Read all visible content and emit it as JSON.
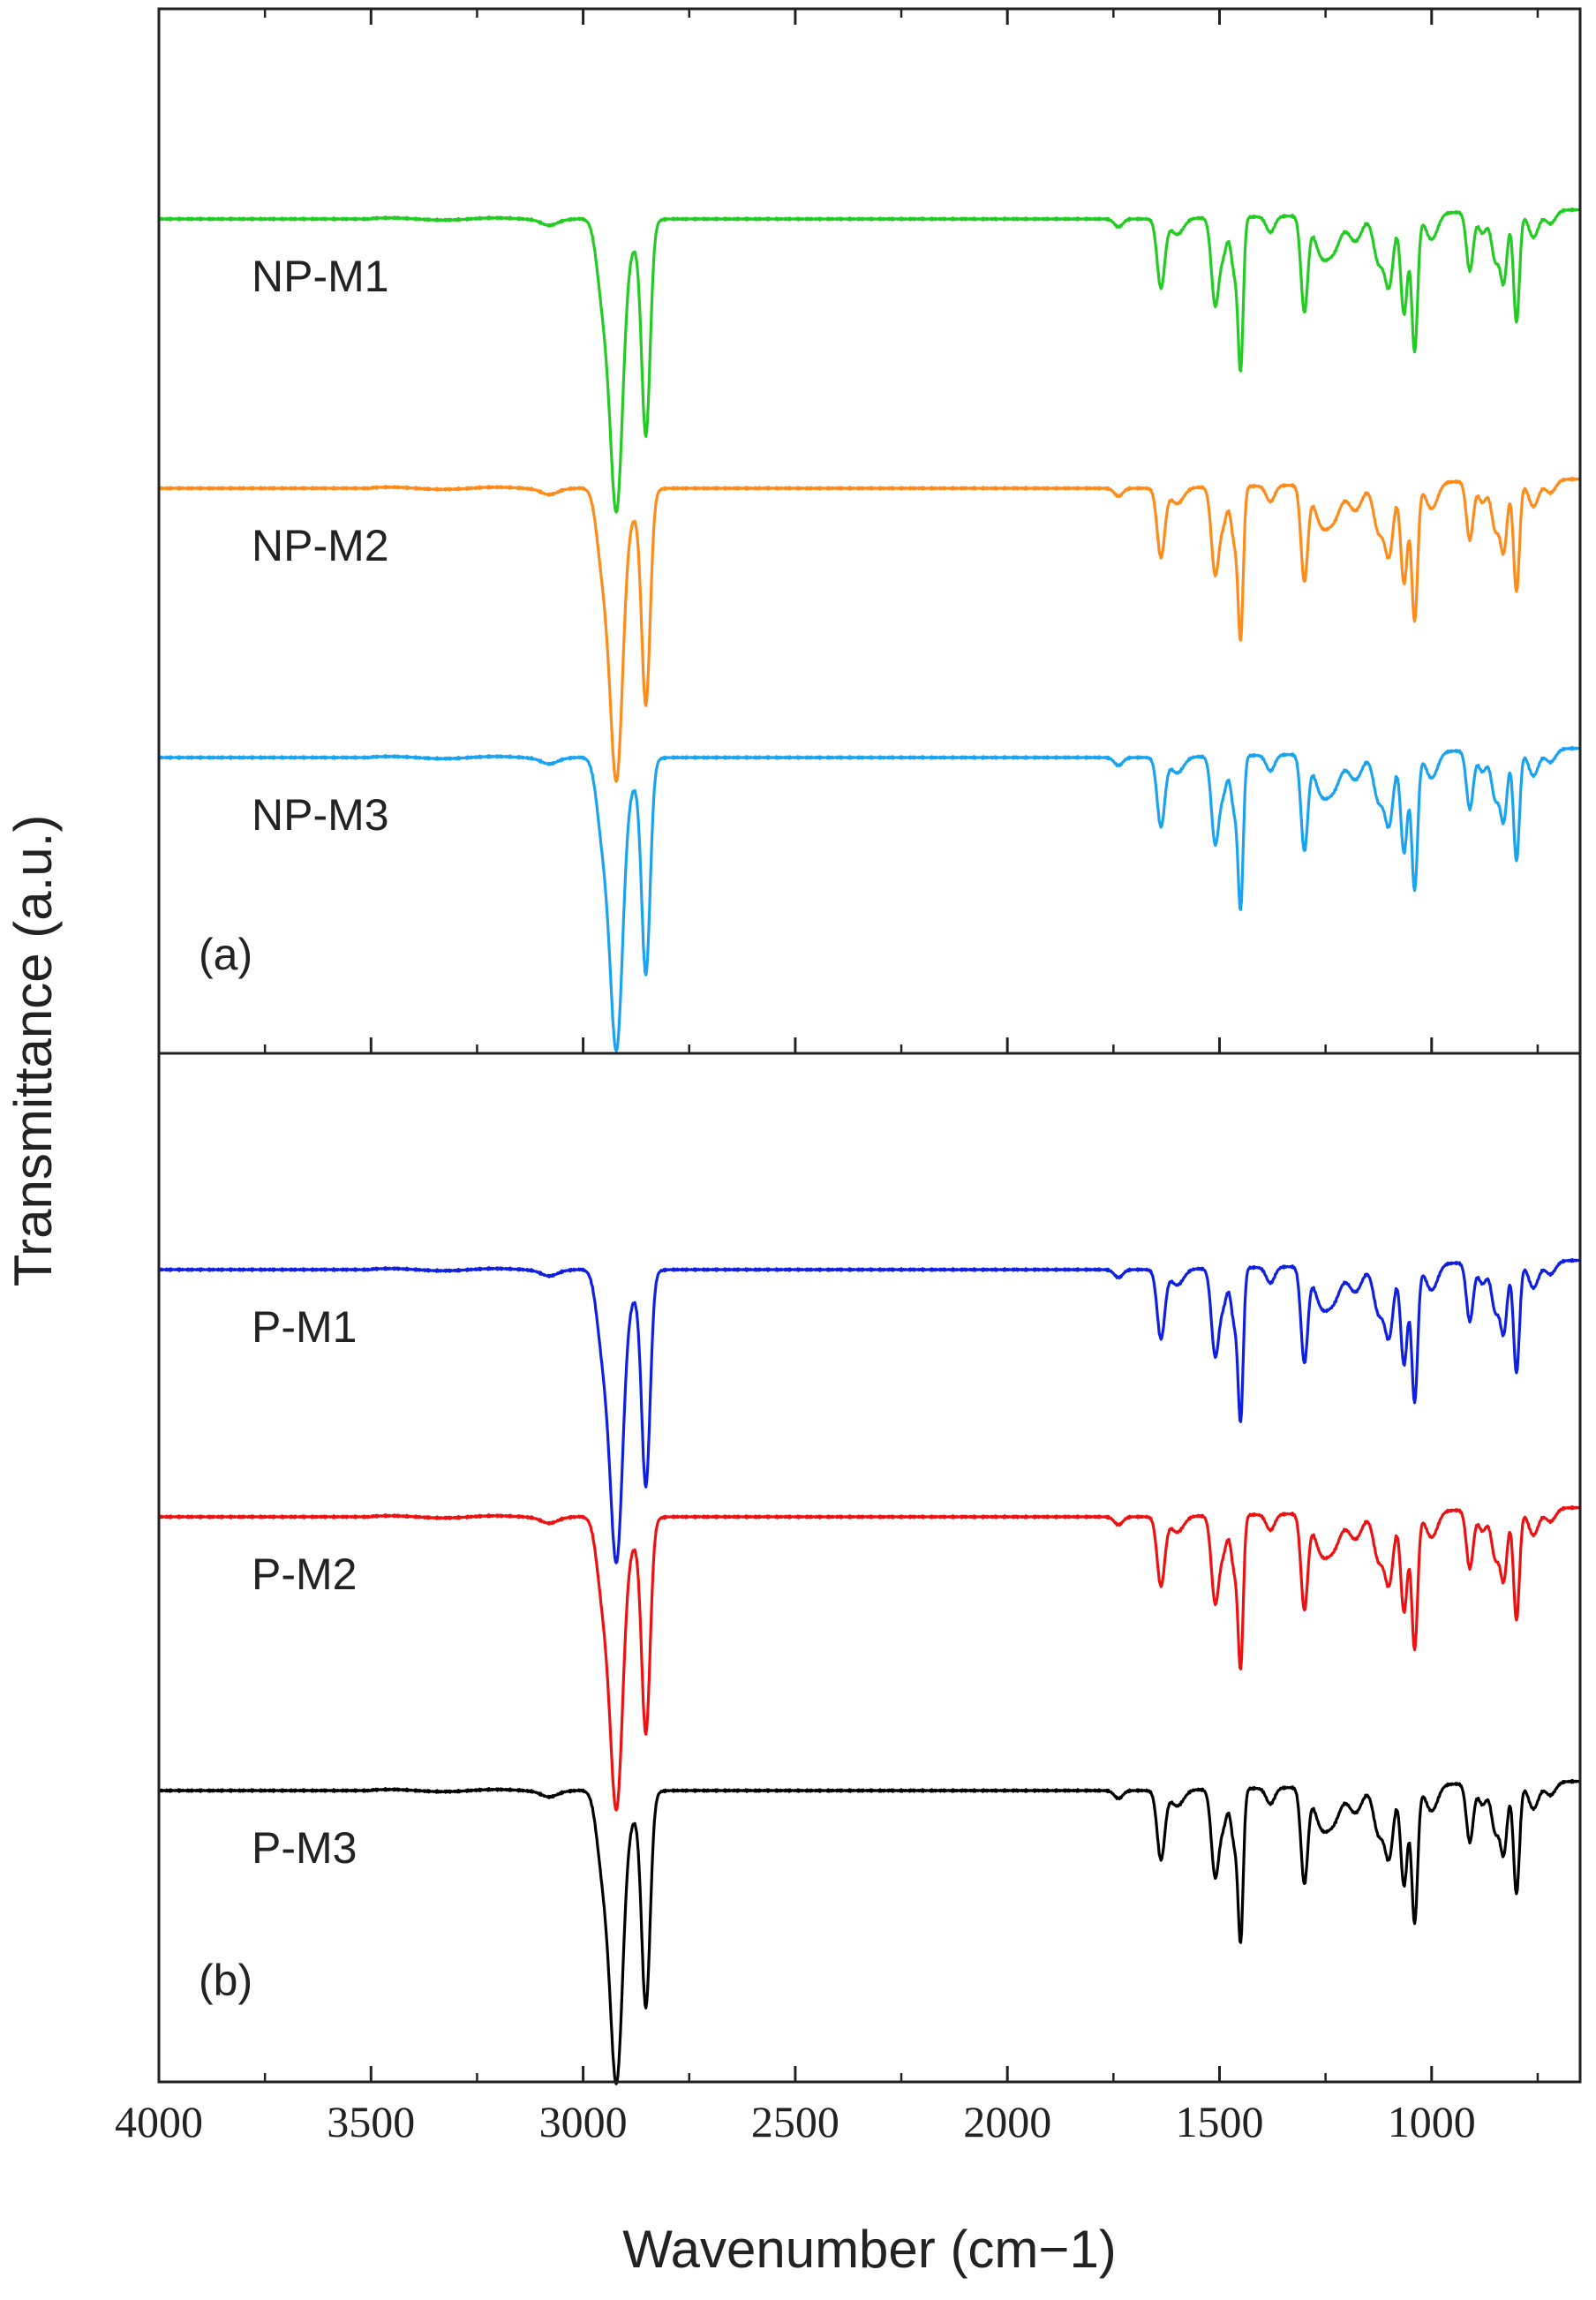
{
  "chart_data": {
    "type": "line",
    "xlabel": "Wavenumber (cm−1)",
    "ylabel": "Transmittance (a.u.)",
    "xlim": [
      4000,
      650
    ],
    "xticks": [
      4000,
      3500,
      3000,
      2500,
      2000,
      1500,
      1000
    ],
    "xtick_labels": [
      "4000",
      "3500",
      "3000",
      "2500",
      "2000",
      "1500",
      "1000"
    ],
    "panels": [
      {
        "label": "(a)",
        "series": [
          {
            "name": "NP-M1",
            "color": "#22cc22",
            "offset": 2
          },
          {
            "name": "NP-M2",
            "color": "#ff8c1a",
            "offset": 1
          },
          {
            "name": "NP-M3",
            "color": "#1aa3f0",
            "offset": 0
          }
        ]
      },
      {
        "label": "(b)",
        "series": [
          {
            "name": "P-M1",
            "color": "#1020e0",
            "offset": 2
          },
          {
            "name": "P-M2",
            "color": "#ee1111",
            "offset": 1
          },
          {
            "name": "P-M3",
            "color": "#000000",
            "offset": 0
          }
        ]
      }
    ],
    "peaks_wavenumber": [
      3080,
      2955,
      2920,
      2852,
      1738,
      1638,
      1510,
      1450,
      1300,
      1100,
      1065,
      1040,
      910,
      800
    ]
  }
}
